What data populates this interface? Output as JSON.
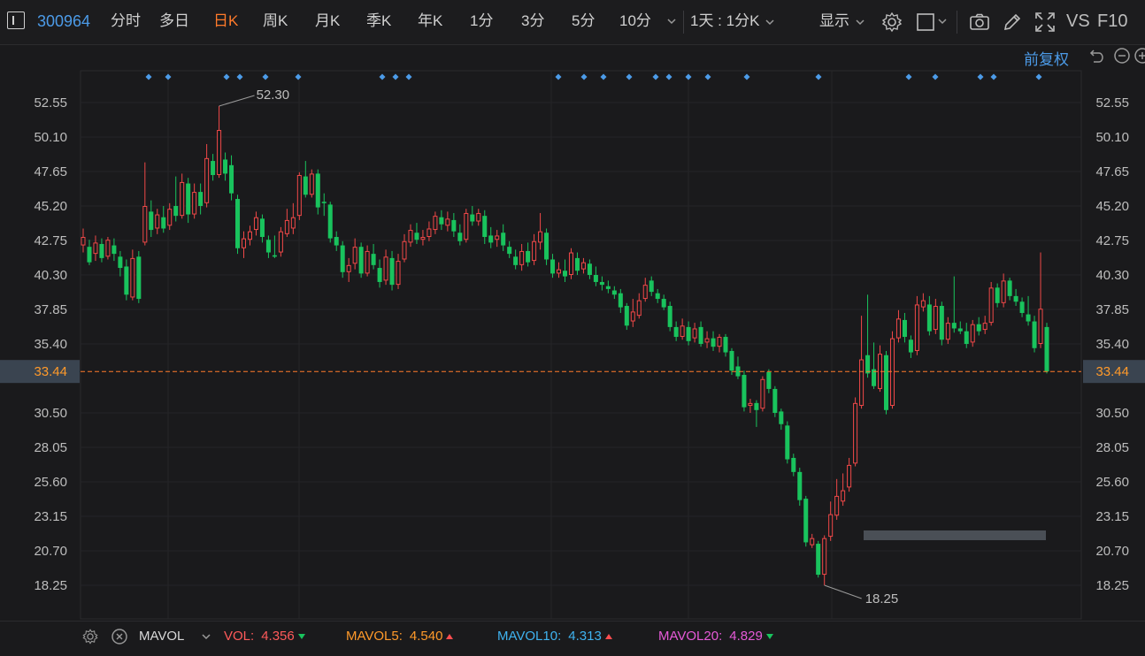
{
  "toolbar": {
    "stock_code": "300964",
    "periods": [
      "分时",
      "多日",
      "日K",
      "周K",
      "月K",
      "季K",
      "年K",
      "1分",
      "3分",
      "5分",
      "10分"
    ],
    "active_period": "日K",
    "combo_label": "1天 : 1分K",
    "display_label": "显示",
    "vs_label": "VS",
    "f10_label": "F10"
  },
  "chart": {
    "adjust_label": "前复权",
    "current_price": "33.44",
    "y_ticks": [
      "52.55",
      "50.10",
      "47.65",
      "45.20",
      "42.75",
      "40.30",
      "37.85",
      "35.40",
      "30.50",
      "28.05",
      "25.60",
      "23.15",
      "20.70",
      "18.25"
    ],
    "high_label": "52.30",
    "low_label": "18.25",
    "colors": {
      "up": "#f04848",
      "down": "#19c35d",
      "current": "#ff7a2a",
      "marker": "#4c9be8"
    }
  },
  "chart_data": {
    "type": "candlestick",
    "ylim": [
      17.5,
      53.5
    ],
    "highest": 52.3,
    "lowest": 18.25,
    "last": 33.44,
    "candles": [
      [
        42.4,
        43.0,
        41.9,
        43.6
      ],
      [
        42.3,
        41.2,
        41.0,
        42.8
      ],
      [
        41.8,
        42.6,
        41.3,
        43.1
      ],
      [
        42.5,
        41.5,
        41.2,
        42.9
      ],
      [
        41.6,
        42.8,
        41.4,
        43.0
      ],
      [
        42.4,
        41.8,
        41.3,
        42.9
      ],
      [
        41.6,
        40.8,
        40.2,
        42.0
      ],
      [
        40.9,
        38.9,
        38.5,
        41.4
      ],
      [
        38.7,
        41.5,
        38.5,
        42.1
      ],
      [
        41.6,
        38.6,
        38.3,
        42.0
      ],
      [
        42.6,
        45.2,
        42.4,
        48.3
      ],
      [
        44.8,
        43.5,
        43.0,
        45.6
      ],
      [
        43.6,
        44.6,
        43.2,
        45.0
      ],
      [
        44.4,
        43.6,
        43.3,
        45.2
      ],
      [
        43.8,
        45.0,
        43.5,
        45.4
      ],
      [
        45.2,
        44.5,
        44.1,
        47.3
      ],
      [
        44.5,
        46.9,
        44.3,
        47.5
      ],
      [
        46.8,
        44.6,
        44.0,
        47.2
      ],
      [
        44.6,
        46.2,
        44.3,
        46.8
      ],
      [
        46.2,
        45.2,
        44.6,
        46.8
      ],
      [
        45.4,
        48.6,
        45.1,
        49.6
      ],
      [
        48.4,
        47.4,
        47.0,
        48.9
      ],
      [
        47.4,
        50.6,
        47.2,
        52.3
      ],
      [
        48.5,
        47.5,
        47.0,
        49.0
      ],
      [
        48.1,
        46.1,
        45.6,
        48.8
      ],
      [
        45.7,
        42.2,
        41.8,
        46.0
      ],
      [
        42.2,
        42.9,
        41.5,
        43.4
      ],
      [
        42.8,
        43.4,
        42.4,
        43.8
      ],
      [
        43.5,
        44.4,
        43.1,
        44.8
      ],
      [
        44.3,
        43.0,
        42.6,
        44.6
      ],
      [
        42.8,
        41.9,
        41.5,
        43.1
      ],
      [
        41.7,
        41.6,
        41.5,
        43.1
      ],
      [
        41.9,
        43.4,
        41.6,
        43.7
      ],
      [
        43.2,
        44.2,
        43.0,
        45.0
      ],
      [
        43.6,
        44.4,
        43.2,
        45.4
      ],
      [
        44.5,
        47.4,
        44.2,
        47.6
      ],
      [
        47.3,
        46.0,
        45.8,
        48.4
      ],
      [
        46.0,
        47.5,
        45.8,
        47.8
      ],
      [
        47.5,
        45.1,
        44.6,
        47.8
      ],
      [
        45.5,
        45.4,
        44.5,
        46.1
      ],
      [
        45.3,
        42.9,
        42.6,
        45.5
      ],
      [
        43.0,
        42.4,
        42.0,
        43.4
      ],
      [
        42.4,
        40.5,
        40.1,
        42.7
      ],
      [
        40.5,
        41.0,
        39.8,
        41.5
      ],
      [
        41.1,
        42.3,
        40.7,
        42.9
      ],
      [
        42.3,
        40.4,
        40.1,
        42.6
      ],
      [
        40.4,
        42.0,
        40.2,
        42.4
      ],
      [
        41.8,
        41.0,
        40.7,
        42.5
      ],
      [
        40.8,
        39.8,
        39.4,
        41.4
      ],
      [
        39.9,
        41.6,
        39.6,
        42.1
      ],
      [
        41.5,
        39.6,
        39.2,
        42.0
      ],
      [
        39.6,
        41.3,
        39.3,
        41.8
      ],
      [
        41.4,
        42.7,
        41.2,
        43.2
      ],
      [
        42.6,
        43.5,
        42.3,
        43.9
      ],
      [
        43.3,
        42.8,
        42.5,
        44.0
      ],
      [
        42.8,
        43.0,
        42.4,
        43.5
      ],
      [
        43.0,
        43.6,
        42.7,
        44.1
      ],
      [
        43.5,
        44.5,
        43.2,
        44.8
      ],
      [
        44.4,
        43.9,
        43.5,
        44.9
      ],
      [
        43.8,
        44.3,
        43.4,
        44.8
      ],
      [
        44.2,
        43.4,
        43.0,
        44.7
      ],
      [
        43.3,
        42.7,
        42.4,
        43.9
      ],
      [
        42.8,
        44.7,
        42.6,
        45.0
      ],
      [
        44.6,
        44.1,
        43.8,
        45.2
      ],
      [
        44.1,
        44.7,
        43.8,
        45.0
      ],
      [
        44.5,
        43.0,
        42.5,
        44.9
      ],
      [
        43.1,
        42.6,
        42.2,
        43.7
      ],
      [
        42.8,
        43.1,
        42.3,
        43.5
      ],
      [
        43.3,
        42.4,
        42.0,
        43.9
      ],
      [
        42.3,
        41.8,
        41.5,
        42.7
      ],
      [
        41.6,
        41.0,
        40.7,
        42.1
      ],
      [
        41.0,
        42.0,
        40.6,
        42.5
      ],
      [
        42.0,
        41.2,
        40.9,
        42.6
      ],
      [
        41.3,
        42.7,
        41.0,
        43.2
      ],
      [
        42.6,
        43.4,
        42.1,
        44.7
      ],
      [
        43.3,
        41.4,
        41.0,
        43.6
      ],
      [
        41.4,
        40.4,
        40.1,
        41.8
      ],
      [
        40.4,
        40.7,
        40.1,
        41.2
      ],
      [
        40.6,
        40.2,
        39.8,
        41.4
      ],
      [
        40.3,
        41.9,
        40.0,
        42.2
      ],
      [
        41.5,
        40.6,
        40.3,
        41.9
      ],
      [
        40.7,
        41.2,
        40.4,
        41.5
      ],
      [
        41.1,
        40.3,
        40.0,
        41.4
      ],
      [
        40.3,
        39.8,
        39.5,
        40.9
      ],
      [
        39.8,
        39.6,
        39.2,
        40.2
      ],
      [
        39.5,
        39.3,
        39.0,
        39.9
      ],
      [
        39.2,
        38.9,
        38.6,
        39.5
      ],
      [
        39.0,
        38.0,
        37.6,
        39.3
      ],
      [
        38.1,
        36.7,
        36.4,
        38.3
      ],
      [
        37.0,
        37.7,
        36.6,
        38.6
      ],
      [
        37.4,
        38.5,
        37.2,
        39.0
      ],
      [
        38.6,
        39.6,
        38.4,
        40.1
      ],
      [
        39.9,
        39.1,
        38.8,
        40.2
      ],
      [
        39.0,
        38.6,
        38.3,
        39.3
      ],
      [
        38.6,
        38.0,
        37.8,
        38.9
      ],
      [
        38.1,
        36.6,
        36.3,
        38.4
      ],
      [
        36.6,
        35.9,
        35.6,
        37.0
      ],
      [
        35.9,
        36.7,
        35.7,
        37.2
      ],
      [
        36.6,
        35.6,
        35.3,
        37.0
      ],
      [
        35.8,
        36.5,
        35.5,
        36.9
      ],
      [
        36.6,
        35.4,
        35.2,
        37.0
      ],
      [
        35.5,
        35.8,
        35.1,
        36.3
      ],
      [
        35.8,
        35.2,
        34.9,
        36.3
      ],
      [
        35.2,
        35.9,
        34.8,
        36.1
      ],
      [
        35.9,
        34.8,
        34.5,
        36.1
      ],
      [
        34.9,
        33.5,
        33.2,
        35.1
      ],
      [
        33.8,
        33.1,
        32.9,
        34.5
      ],
      [
        33.2,
        30.9,
        30.6,
        33.5
      ],
      [
        31.0,
        31.2,
        30.5,
        31.5
      ],
      [
        31.2,
        30.7,
        29.5,
        31.4
      ],
      [
        30.8,
        32.9,
        30.6,
        33.1
      ],
      [
        33.4,
        32.2,
        31.9,
        33.6
      ],
      [
        32.2,
        30.5,
        30.2,
        32.4
      ],
      [
        30.6,
        29.7,
        29.3,
        30.8
      ],
      [
        29.6,
        27.2,
        26.9,
        29.9
      ],
      [
        27.3,
        26.3,
        26.0,
        27.6
      ],
      [
        26.3,
        24.3,
        23.9,
        26.6
      ],
      [
        24.4,
        21.3,
        21.0,
        24.6
      ],
      [
        21.1,
        21.6,
        20.9,
        21.9
      ],
      [
        21.2,
        19.0,
        18.8,
        21.4
      ],
      [
        19.0,
        21.6,
        18.25,
        21.8
      ],
      [
        21.7,
        23.3,
        21.4,
        24.2
      ],
      [
        23.2,
        24.6,
        22.9,
        25.8
      ],
      [
        24.2,
        25.0,
        23.9,
        26.2
      ],
      [
        25.2,
        26.8,
        24.9,
        27.3
      ],
      [
        26.9,
        31.2,
        26.7,
        31.6
      ],
      [
        31.0,
        34.3,
        30.8,
        37.4
      ],
      [
        34.6,
        33.3,
        33.0,
        38.9
      ],
      [
        33.6,
        32.4,
        32.2,
        35.5
      ],
      [
        32.2,
        34.7,
        32.0,
        35.3
      ],
      [
        34.6,
        30.7,
        30.4,
        34.9
      ],
      [
        31.0,
        35.8,
        30.8,
        36.3
      ],
      [
        35.8,
        37.2,
        35.5,
        37.8
      ],
      [
        37.1,
        35.9,
        35.5,
        37.6
      ],
      [
        35.7,
        34.8,
        34.4,
        36.0
      ],
      [
        34.9,
        38.2,
        34.6,
        38.8
      ],
      [
        38.0,
        38.5,
        37.7,
        39.0
      ],
      [
        38.2,
        36.3,
        36.0,
        38.8
      ],
      [
        36.4,
        38.1,
        36.1,
        38.6
      ],
      [
        38.1,
        35.7,
        35.3,
        38.4
      ],
      [
        35.7,
        36.9,
        35.4,
        37.3
      ],
      [
        36.9,
        36.5,
        36.2,
        40.2
      ],
      [
        36.5,
        36.3,
        36.1,
        37.0
      ],
      [
        36.3,
        35.4,
        35.1,
        36.9
      ],
      [
        35.5,
        36.8,
        35.2,
        37.1
      ],
      [
        36.8,
        36.3,
        36.0,
        37.3
      ],
      [
        36.4,
        36.9,
        36.1,
        37.4
      ],
      [
        36.9,
        39.4,
        36.7,
        39.8
      ],
      [
        39.4,
        38.3,
        38.0,
        39.7
      ],
      [
        38.3,
        39.9,
        38.0,
        40.4
      ],
      [
        39.9,
        38.8,
        38.5,
        40.1
      ],
      [
        38.8,
        38.4,
        38.1,
        39.3
      ],
      [
        38.4,
        37.6,
        37.3,
        38.7
      ],
      [
        37.5,
        37.0,
        36.7,
        38.8
      ],
      [
        37.0,
        35.1,
        34.8,
        37.4
      ],
      [
        35.4,
        37.9,
        35.1,
        41.9
      ],
      [
        36.6,
        33.44,
        33.3,
        36.9
      ]
    ]
  },
  "indicator": {
    "name": "MAVOL",
    "vol_label": "VOL:",
    "vol_value": "4.356",
    "vol_trend": "down",
    "mavol5_label": "MAVOL5:",
    "mavol5_value": "4.540",
    "mavol5_trend": "up",
    "mavol10_label": "MAVOL10:",
    "mavol10_value": "4.313",
    "mavol10_trend": "up",
    "mavol20_label": "MAVOL20:",
    "mavol20_value": "4.829",
    "mavol20_trend": "down"
  }
}
